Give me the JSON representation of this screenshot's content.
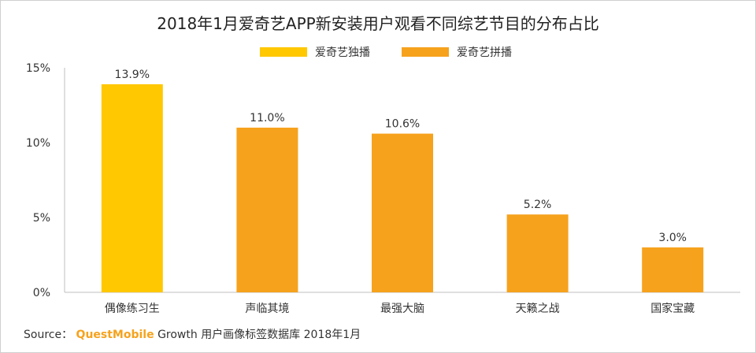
{
  "chart_data": {
    "type": "bar",
    "title": "2018年1月爱奇艺APP新安装用户观看不同综艺节目的分布占比",
    "categories": [
      "偶像练习生",
      "声临其境",
      "最强大脑",
      "天籁之战",
      "国家宝藏"
    ],
    "values": [
      13.9,
      11.0,
      10.6,
      5.2,
      3.0
    ],
    "value_labels": [
      "13.9%",
      "11.0%",
      "10.6%",
      "5.2%",
      "3.0%"
    ],
    "bar_series": [
      "爱奇艺独播",
      "爱奇艺拼播",
      "爱奇艺拼播",
      "爱奇艺拼播",
      "爱奇艺拼播"
    ],
    "series": [
      {
        "name": "爱奇艺独播",
        "color": "#ffc800"
      },
      {
        "name": "爱奇艺拼播",
        "color": "#f6a21d"
      }
    ],
    "ylim": [
      0,
      15
    ],
    "yticks": [
      0,
      5,
      10,
      15
    ],
    "ytick_labels": [
      "0%",
      "5%",
      "10%",
      "15%"
    ],
    "grid": false,
    "legend_position": "top-center"
  },
  "source": {
    "prefix": "Source：",
    "brand": "QuestMobile",
    "rest": "Growth 用户画像标签数据库 2018年1月"
  }
}
